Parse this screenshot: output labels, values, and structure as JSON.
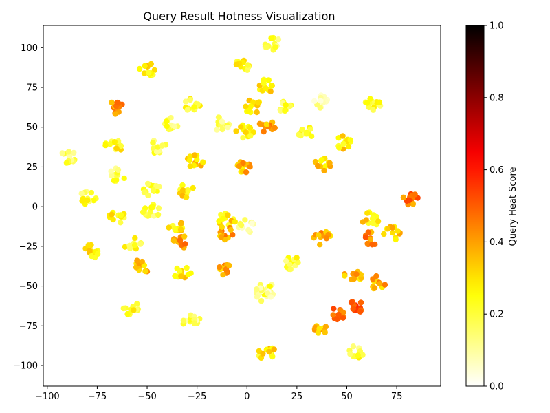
{
  "chart_data": {
    "type": "scatter",
    "title": "Query Result Hotness Visualization",
    "xlabel": "",
    "ylabel": "",
    "xlim": [
      -102,
      97
    ],
    "ylim": [
      -113,
      114
    ],
    "xticks": [
      -100,
      -75,
      -50,
      -25,
      0,
      25,
      50,
      75
    ],
    "yticks": [
      -100,
      -75,
      -50,
      -25,
      0,
      25,
      50,
      75,
      100
    ],
    "colormap": "hot_r",
    "colorbar": {
      "label": "Query Heat Score",
      "range": [
        0.0,
        1.0
      ],
      "ticks": [
        "0.0",
        "0.2",
        "0.4",
        "0.6",
        "0.8",
        "1.0"
      ]
    },
    "grid": false,
    "clusters": [
      {
        "x": -50,
        "y": 86,
        "heat": 0.28
      },
      {
        "x": -2,
        "y": 89,
        "heat": 0.25
      },
      {
        "x": 12,
        "y": 103,
        "heat": 0.2
      },
      {
        "x": 10,
        "y": 76,
        "heat": 0.27
      },
      {
        "x": -65,
        "y": 62,
        "heat": 0.4
      },
      {
        "x": -38,
        "y": 52,
        "heat": 0.18
      },
      {
        "x": -13,
        "y": 52,
        "heat": 0.14
      },
      {
        "x": 3,
        "y": 63,
        "heat": 0.3
      },
      {
        "x": 18,
        "y": 64,
        "heat": 0.18
      },
      {
        "x": 10,
        "y": 50,
        "heat": 0.38
      },
      {
        "x": 38,
        "y": 66,
        "heat": 0.12
      },
      {
        "x": 63,
        "y": 65,
        "heat": 0.2
      },
      {
        "x": -67,
        "y": 38,
        "heat": 0.24
      },
      {
        "x": -45,
        "y": 38,
        "heat": 0.2
      },
      {
        "x": -27,
        "y": 64,
        "heat": 0.22
      },
      {
        "x": -26,
        "y": 28,
        "heat": 0.32
      },
      {
        "x": -1,
        "y": 47,
        "heat": 0.24
      },
      {
        "x": 29,
        "y": 47,
        "heat": 0.2
      },
      {
        "x": -90,
        "y": 31,
        "heat": 0.16
      },
      {
        "x": -65,
        "y": 20,
        "heat": 0.18
      },
      {
        "x": -48,
        "y": 11,
        "heat": 0.24
      },
      {
        "x": -30,
        "y": 10,
        "heat": 0.3
      },
      {
        "x": -2,
        "y": 24,
        "heat": 0.36
      },
      {
        "x": 38,
        "y": 27,
        "heat": 0.32
      },
      {
        "x": 48,
        "y": 40,
        "heat": 0.3
      },
      {
        "x": -80,
        "y": 6,
        "heat": 0.2
      },
      {
        "x": -65,
        "y": -6,
        "heat": 0.26
      },
      {
        "x": -48,
        "y": -3,
        "heat": 0.2
      },
      {
        "x": -35,
        "y": -12,
        "heat": 0.3
      },
      {
        "x": -10,
        "y": -8,
        "heat": 0.3
      },
      {
        "x": 0,
        "y": -12,
        "heat": 0.1
      },
      {
        "x": 62,
        "y": -8,
        "heat": 0.3
      },
      {
        "x": 82,
        "y": 5,
        "heat": 0.46
      },
      {
        "x": -78,
        "y": -28,
        "heat": 0.28
      },
      {
        "x": -57,
        "y": -24,
        "heat": 0.24
      },
      {
        "x": -34,
        "y": -22,
        "heat": 0.42
      },
      {
        "x": -11,
        "y": -17,
        "heat": 0.38
      },
      {
        "x": 38,
        "y": -20,
        "heat": 0.38
      },
      {
        "x": 62,
        "y": -20,
        "heat": 0.44
      },
      {
        "x": 73,
        "y": -17,
        "heat": 0.34
      },
      {
        "x": -52,
        "y": -37,
        "heat": 0.34
      },
      {
        "x": -32,
        "y": -42,
        "heat": 0.28
      },
      {
        "x": -12,
        "y": -40,
        "heat": 0.38
      },
      {
        "x": 10,
        "y": -52,
        "heat": 0.18
      },
      {
        "x": 22,
        "y": -35,
        "heat": 0.2
      },
      {
        "x": 53,
        "y": -44,
        "heat": 0.36
      },
      {
        "x": 66,
        "y": -48,
        "heat": 0.38
      },
      {
        "x": -58,
        "y": -64,
        "heat": 0.24
      },
      {
        "x": -28,
        "y": -72,
        "heat": 0.16
      },
      {
        "x": 8,
        "y": -55,
        "heat": 0.12
      },
      {
        "x": 38,
        "y": -76,
        "heat": 0.34
      },
      {
        "x": 45,
        "y": -67,
        "heat": 0.45
      },
      {
        "x": 55,
        "y": -62,
        "heat": 0.55
      },
      {
        "x": 10,
        "y": -92,
        "heat": 0.28
      },
      {
        "x": 55,
        "y": -91,
        "heat": 0.2
      }
    ]
  }
}
